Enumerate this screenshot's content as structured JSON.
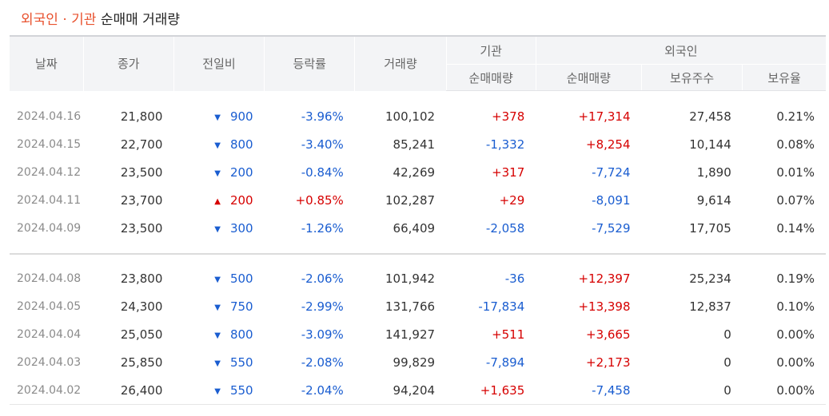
{
  "title": {
    "accent": "외국인 · 기관",
    "rest": "순매매 거래량"
  },
  "headers": {
    "date": "날짜",
    "close": "종가",
    "change": "전일비",
    "rate": "등락률",
    "volume": "거래량",
    "inst_group": "기관",
    "foreign_group": "외국인",
    "inst_net": "순매매량",
    "foreign_net": "순매매량",
    "holdings": "보유주수",
    "ratio": "보유율"
  },
  "colors": {
    "up": "#d60000",
    "down": "#1a5dd0",
    "accent": "#e8512e"
  },
  "group1": [
    {
      "date": "2024.04.16",
      "close": "21,800",
      "dir": "down",
      "arrow": "▼",
      "change": "900",
      "rate": "-3.96%",
      "volume": "100,102",
      "inst": "+378",
      "foreign": "+17,314",
      "holdings": "27,458",
      "ratio": "0.21%"
    },
    {
      "date": "2024.04.15",
      "close": "22,700",
      "dir": "down",
      "arrow": "▼",
      "change": "800",
      "rate": "-3.40%",
      "volume": "85,241",
      "inst": "-1,332",
      "foreign": "+8,254",
      "holdings": "10,144",
      "ratio": "0.08%"
    },
    {
      "date": "2024.04.12",
      "close": "23,500",
      "dir": "down",
      "arrow": "▼",
      "change": "200",
      "rate": "-0.84%",
      "volume": "42,269",
      "inst": "+317",
      "foreign": "-7,724",
      "holdings": "1,890",
      "ratio": "0.01%"
    },
    {
      "date": "2024.04.11",
      "close": "23,700",
      "dir": "up",
      "arrow": "▲",
      "change": "200",
      "rate": "+0.85%",
      "volume": "102,287",
      "inst": "+29",
      "foreign": "-8,091",
      "holdings": "9,614",
      "ratio": "0.07%"
    },
    {
      "date": "2024.04.09",
      "close": "23,500",
      "dir": "down",
      "arrow": "▼",
      "change": "300",
      "rate": "-1.26%",
      "volume": "66,409",
      "inst": "-2,058",
      "foreign": "-7,529",
      "holdings": "17,705",
      "ratio": "0.14%"
    }
  ],
  "group2": [
    {
      "date": "2024.04.08",
      "close": "23,800",
      "dir": "down",
      "arrow": "▼",
      "change": "500",
      "rate": "-2.06%",
      "volume": "101,942",
      "inst": "-36",
      "foreign": "+12,397",
      "holdings": "25,234",
      "ratio": "0.19%"
    },
    {
      "date": "2024.04.05",
      "close": "24,300",
      "dir": "down",
      "arrow": "▼",
      "change": "750",
      "rate": "-2.99%",
      "volume": "131,766",
      "inst": "-17,834",
      "foreign": "+13,398",
      "holdings": "12,837",
      "ratio": "0.10%"
    },
    {
      "date": "2024.04.04",
      "close": "25,050",
      "dir": "down",
      "arrow": "▼",
      "change": "800",
      "rate": "-3.09%",
      "volume": "141,927",
      "inst": "+511",
      "foreign": "+3,665",
      "holdings": "0",
      "ratio": "0.00%"
    },
    {
      "date": "2024.04.03",
      "close": "25,850",
      "dir": "down",
      "arrow": "▼",
      "change": "550",
      "rate": "-2.08%",
      "volume": "99,829",
      "inst": "-7,894",
      "foreign": "+2,173",
      "holdings": "0",
      "ratio": "0.00%"
    },
    {
      "date": "2024.04.02",
      "close": "26,400",
      "dir": "down",
      "arrow": "▼",
      "change": "550",
      "rate": "-2.04%",
      "volume": "94,204",
      "inst": "+1,635",
      "foreign": "-7,458",
      "holdings": "0",
      "ratio": "0.00%"
    }
  ]
}
